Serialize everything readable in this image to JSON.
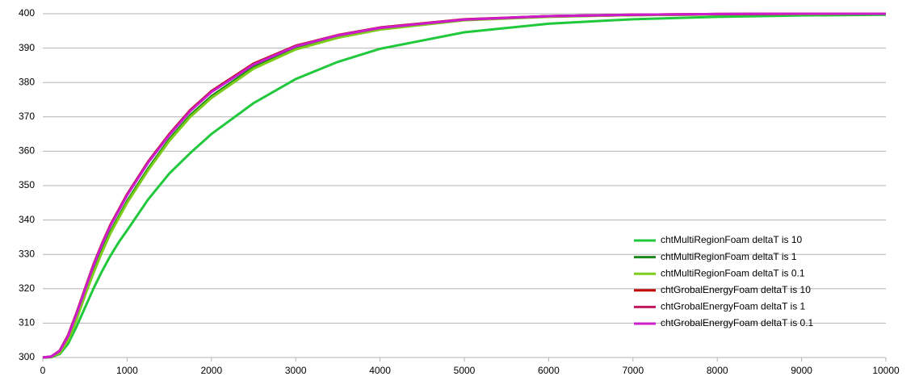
{
  "chart_data": {
    "type": "line",
    "x": [
      0,
      100,
      200,
      300,
      400,
      500,
      600,
      700,
      800,
      900,
      1000,
      1250,
      1500,
      1750,
      2000,
      2500,
      3000,
      3500,
      4000,
      5000,
      6000,
      7000,
      8000,
      9000,
      10000
    ],
    "series": [
      {
        "name": "chtMultiRegionFoam deltaT is 10",
        "color": "#22c83c",
        "values": [
          300,
          300.1,
          301,
          304,
          309,
          314.5,
          320,
          325,
          329.5,
          333.5,
          337,
          346,
          353.5,
          359.5,
          365,
          374,
          381,
          386,
          389.8,
          394.6,
          397.1,
          398.4,
          399.1,
          399.5,
          399.7
        ]
      },
      {
        "name": "chtMultiRegionFoam deltaT is 1",
        "color": "#1a8a1a",
        "values": [
          300,
          300.2,
          301.5,
          305.5,
          311.5,
          318.5,
          325,
          331,
          336.5,
          341,
          345.5,
          355,
          363.5,
          370.5,
          376,
          384.5,
          390,
          393.3,
          395.6,
          398.2,
          399.2,
          399.6,
          399.8,
          399.9,
          400
        ]
      },
      {
        "name": "chtMultiRegionFoam deltaT is 0.1",
        "color": "#7ccc1c",
        "values": [
          300,
          300.2,
          301.3,
          305,
          311,
          318,
          324.5,
          330.5,
          336,
          340.5,
          345,
          354.5,
          363,
          370,
          375.5,
          384,
          389.6,
          393,
          395.4,
          398.1,
          399.1,
          399.6,
          399.8,
          399.9,
          400
        ]
      },
      {
        "name": "chtGrobalEnergyFoam deltaT is 10",
        "color": "#c00000",
        "values": [
          300,
          300.3,
          302,
          306.5,
          313,
          320,
          327,
          333,
          338.5,
          343,
          347.5,
          357,
          365,
          372,
          377.5,
          385.5,
          390.7,
          393.8,
          396,
          398.4,
          399.3,
          399.7,
          399.9,
          400,
          400
        ]
      },
      {
        "name": "chtGrobalEnergyFoam deltaT is 1",
        "color": "#c0185c",
        "values": [
          300,
          300.3,
          301.9,
          306.3,
          312.8,
          319.8,
          326.8,
          332.8,
          338.3,
          342.8,
          347.3,
          356.8,
          364.8,
          371.8,
          377.3,
          385.3,
          390.6,
          393.7,
          395.9,
          398.3,
          399.3,
          399.7,
          399.9,
          400,
          400
        ]
      },
      {
        "name": "chtGrobalEnergyFoam deltaT is 0.1",
        "color": "#cc1ccc",
        "values": [
          300,
          300.3,
          301.9,
          306.2,
          312.7,
          319.7,
          326.7,
          332.7,
          338.2,
          342.7,
          347.2,
          356.7,
          364.7,
          371.7,
          377.2,
          385.2,
          390.5,
          393.7,
          395.9,
          398.3,
          399.3,
          399.7,
          399.9,
          400,
          400
        ]
      }
    ],
    "xlim": [
      0,
      10000
    ],
    "xticks": [
      0,
      1000,
      2000,
      3000,
      4000,
      5000,
      6000,
      7000,
      8000,
      9000,
      10000
    ],
    "ylim": [
      300,
      400
    ],
    "yticks": [
      300,
      310,
      320,
      330,
      340,
      350,
      360,
      370,
      380,
      390,
      400
    ],
    "grid": true,
    "legend": "right"
  }
}
